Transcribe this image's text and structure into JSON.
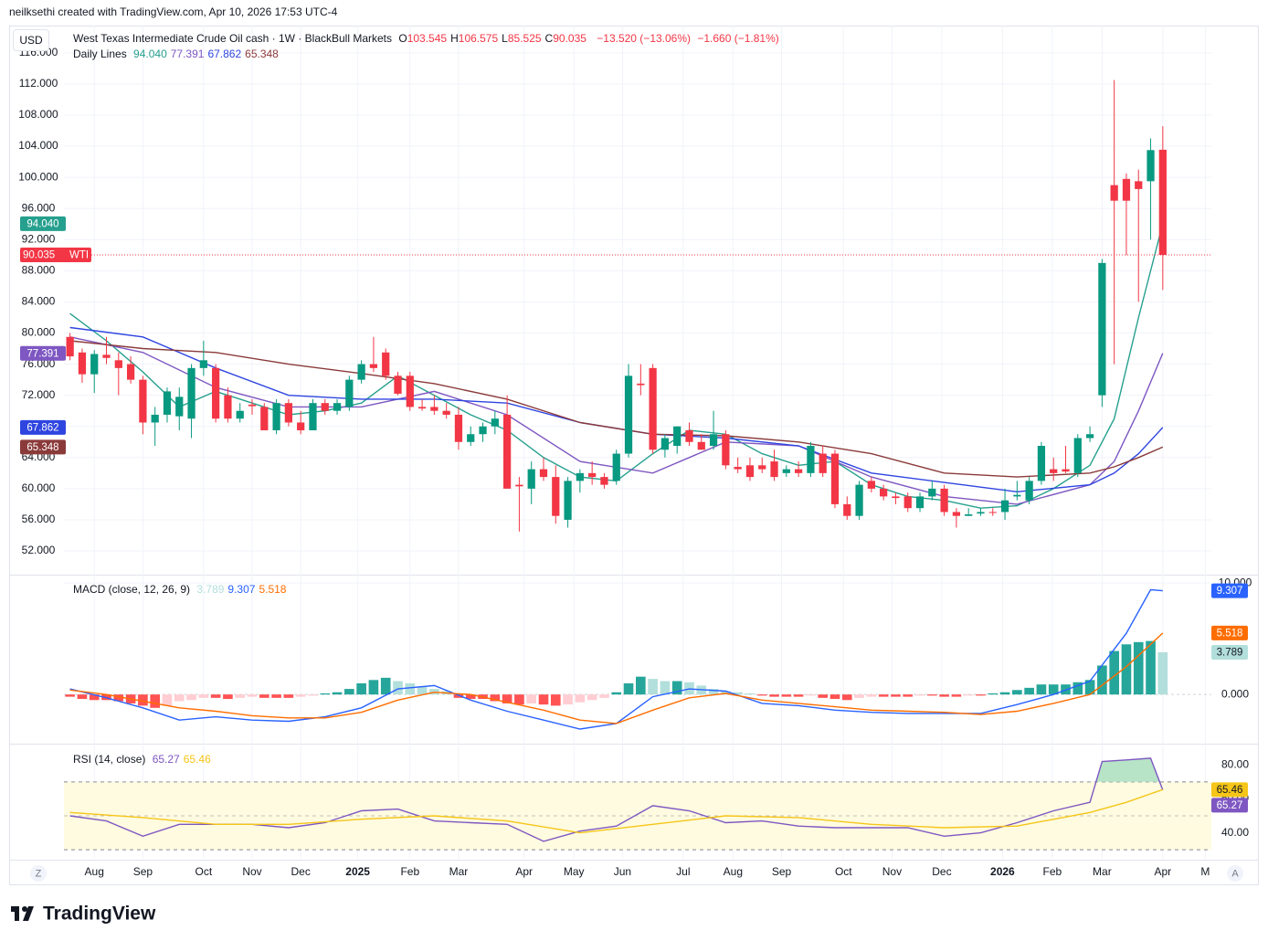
{
  "page": {
    "author_line": "neilksethi created with TradingView.com, Apr 10, 2026 17:53 UTC-4",
    "logo": "TradingView",
    "currency": "USD",
    "zoom_buttons": [
      "Z",
      "A"
    ]
  },
  "chart_data": [
    {
      "type": "candlestick",
      "title": "West Texas Intermediate Crude Oil cash · 1W · BlackBull Markets",
      "ohlc_prefixes": [
        "O",
        "H",
        "L",
        "C"
      ],
      "change": "−13.520 (−13.06%)",
      "change_2": "−1.660 (−1.81%)",
      "symbol_tag": "WTI",
      "up_color": "#089981",
      "down_color": "#f23645",
      "open": [
        79.5,
        77.5,
        74.7,
        77.2,
        76.5,
        76,
        74,
        68.5,
        69.5,
        69.3,
        69,
        75.5,
        75.5,
        72,
        69,
        70.8,
        70.5,
        67.5,
        71,
        68.5,
        67.5,
        71,
        70,
        70.5,
        74,
        76,
        77.5,
        74.5,
        74.5,
        70.5,
        70.5,
        70,
        69.5,
        66,
        67,
        68,
        69.5,
        60.5,
        60,
        62.5,
        61.5,
        56,
        61,
        62,
        61.5,
        61,
        64.5,
        73.5,
        75.5,
        65,
        65.5,
        67.5,
        66,
        65.5,
        67,
        62.8,
        63,
        63,
        63.5,
        62,
        62.5,
        62,
        64.5,
        64.5,
        58,
        56.5,
        61,
        60,
        59,
        59,
        57.5,
        59,
        60,
        57,
        56.5,
        56.8,
        57,
        57,
        59,
        58.5,
        61,
        62.5,
        62.5,
        62,
        66.5,
        72,
        99,
        99.8,
        99.5,
        99.5,
        103.545
      ],
      "high": [
        80,
        78,
        77.8,
        79.5,
        77.5,
        77,
        74.5,
        70.5,
        73,
        73,
        76,
        79,
        76,
        73,
        71,
        71.5,
        71,
        71.5,
        71.5,
        70,
        71.5,
        71.5,
        71.5,
        74.5,
        76.5,
        79.5,
        78,
        75,
        75,
        71.5,
        72,
        71,
        70.5,
        68,
        68.5,
        70,
        72,
        61.5,
        63.5,
        64,
        63,
        61.5,
        62.5,
        63.5,
        62,
        65,
        76,
        76,
        76,
        67,
        68,
        68.5,
        67,
        70,
        67.5,
        64,
        64,
        64,
        65,
        63,
        63.5,
        66,
        65.5,
        65,
        59,
        61,
        61.5,
        60.5,
        59.5,
        59.5,
        59.5,
        61,
        60.5,
        57.5,
        57.5,
        57.5,
        57.5,
        60,
        61,
        61.5,
        66,
        64,
        65.5,
        67,
        68,
        89.5,
        112.5,
        100.5,
        101,
        105,
        106.575
      ],
      "low": [
        76.5,
        73.6,
        72.3,
        76,
        72,
        73.5,
        67,
        65.5,
        68.5,
        67.5,
        66.5,
        74.5,
        68.5,
        68.5,
        68.5,
        69.5,
        67.5,
        67,
        68,
        67,
        67.5,
        69.5,
        69.5,
        70,
        73.5,
        75,
        74,
        72,
        70,
        70,
        69.5,
        69,
        65,
        65.5,
        66,
        67,
        60,
        54.5,
        58,
        61,
        55.5,
        55,
        59.5,
        60.5,
        60,
        60.5,
        64,
        72,
        64.5,
        64,
        64.5,
        65.5,
        65,
        65,
        62.5,
        62,
        61,
        62,
        61,
        61.5,
        61.5,
        61.5,
        61.5,
        57.5,
        56,
        56,
        59.5,
        58.5,
        58,
        57,
        57,
        58.5,
        56.5,
        55,
        56.5,
        56.5,
        56.5,
        56,
        58.5,
        58,
        60.5,
        61,
        62,
        61.5,
        66,
        70.5,
        76,
        90,
        84,
        92,
        85.525
      ],
      "close": [
        77,
        74.7,
        77.3,
        76.8,
        75.5,
        74,
        68.5,
        69.5,
        72.5,
        71.8,
        75.5,
        76.5,
        69,
        69,
        70,
        70.6,
        67.5,
        71,
        68.5,
        67.5,
        71,
        70,
        71,
        74,
        76,
        75.5,
        74.5,
        72.2,
        70.5,
        70.3,
        70,
        69.5,
        66,
        67,
        68,
        69,
        60,
        60.3,
        62.5,
        61.5,
        56.5,
        61,
        62,
        61.5,
        60.5,
        64.5,
        74.5,
        73.3,
        65,
        66.5,
        68,
        66,
        65,
        67,
        63,
        62.5,
        61.5,
        62.5,
        61.5,
        62.5,
        62,
        65.5,
        62,
        58,
        56.5,
        60.5,
        60,
        59,
        58.8,
        57.5,
        59,
        60,
        57,
        56.5,
        56.7,
        57,
        56.9,
        58.5,
        59.2,
        61,
        65.5,
        62,
        62.2,
        66.5,
        67,
        89,
        97,
        97,
        98.5,
        103.5,
        90.035
      ],
      "xlim": [
        -0.5,
        94
      ],
      "xticks": [
        {
          "value": 2,
          "label": "Aug"
        },
        {
          "value": 6,
          "label": "Sep"
        },
        {
          "value": 11,
          "label": "Oct"
        },
        {
          "value": 15,
          "label": "Nov"
        },
        {
          "value": 19,
          "label": "Dec"
        },
        {
          "value": 23.7,
          "label": "2025"
        },
        {
          "value": 28,
          "label": "Feb"
        },
        {
          "value": 32,
          "label": "Mar"
        },
        {
          "value": 37.4,
          "label": "Apr"
        },
        {
          "value": 41.5,
          "label": "May"
        },
        {
          "value": 45.5,
          "label": "Jun"
        },
        {
          "value": 50.5,
          "label": "Jul"
        },
        {
          "value": 54.6,
          "label": "Aug"
        },
        {
          "value": 58.6,
          "label": "Sep"
        },
        {
          "value": 63.7,
          "label": "Oct"
        },
        {
          "value": 67.7,
          "label": "Nov"
        },
        {
          "value": 71.8,
          "label": "Dec"
        },
        {
          "value": 76.8,
          "label": "2026"
        },
        {
          "value": 80.9,
          "label": "Feb"
        },
        {
          "value": 85,
          "label": "Mar"
        },
        {
          "value": 90,
          "label": "Apr"
        },
        {
          "value": 93.5,
          "label": "M"
        }
      ],
      "ylim": [
        49.07,
        119.5
      ],
      "yticks": [
        {
          "value": 52,
          "label": "52.000"
        },
        {
          "value": 56,
          "label": "56.000"
        },
        {
          "value": 60,
          "label": "60.000"
        },
        {
          "value": 64,
          "label": "64.000"
        },
        {
          "value": 68,
          "label": "68.000"
        },
        {
          "value": 72,
          "label": "72.000"
        },
        {
          "value": 76,
          "label": "76.000"
        },
        {
          "value": 80,
          "label": "80.000"
        },
        {
          "value": 84,
          "label": "84.000"
        },
        {
          "value": 88,
          "label": "88.000"
        },
        {
          "value": 92,
          "label": "92.000"
        },
        {
          "value": 96,
          "label": "96.000"
        },
        {
          "value": 100,
          "label": "100.000"
        },
        {
          "value": 104,
          "label": "104.000"
        },
        {
          "value": 108,
          "label": "108.000"
        },
        {
          "value": 112,
          "label": "112.000"
        },
        {
          "value": 116,
          "label": "116.000"
        }
      ],
      "grid": true,
      "lines_title": "Daily Lines",
      "lines": [
        {
          "color": "#26a08e",
          "last_label": "94.040",
          "x": [
            0,
            3,
            6,
            9,
            12,
            15,
            18,
            21,
            24,
            27,
            30,
            33,
            36,
            39,
            42,
            45,
            48,
            51,
            54,
            57,
            60,
            63,
            66,
            69,
            72,
            75,
            78,
            81,
            84,
            86,
            88,
            90
          ],
          "values": [
            82.5,
            79,
            75,
            70.5,
            72.5,
            71,
            69.5,
            70,
            71,
            74.5,
            72,
            69.5,
            67.5,
            64,
            61.5,
            61,
            64.5,
            67.5,
            67,
            64.5,
            63,
            63.5,
            60.5,
            59,
            58.5,
            57.5,
            57.8,
            60,
            63,
            69,
            82,
            94.04
          ]
        },
        {
          "color": "#7e57c2",
          "last_label": "77.391",
          "x": [
            0,
            6,
            12,
            18,
            24,
            30,
            36,
            42,
            48,
            54,
            60,
            66,
            72,
            78,
            84,
            86,
            88,
            90
          ],
          "values": [
            79.5,
            77.5,
            73,
            70.5,
            70.5,
            72.5,
            69.5,
            63.5,
            62,
            66,
            65.5,
            61.5,
            59,
            58,
            60.5,
            63.5,
            70,
            77.391
          ]
        },
        {
          "color": "#2f45e0",
          "last_label": "67.862",
          "x": [
            0,
            6,
            12,
            18,
            24,
            30,
            36,
            42,
            48,
            54,
            60,
            66,
            72,
            78,
            84,
            86,
            88,
            90
          ],
          "values": [
            80.7,
            79.5,
            75.5,
            72,
            71.5,
            71.5,
            71,
            68.5,
            67,
            66.5,
            65.5,
            62,
            60.8,
            59.6,
            60.5,
            62,
            64.5,
            67.862
          ]
        },
        {
          "color": "#8b3a3a",
          "last_label": "65.348",
          "x": [
            0,
            6,
            12,
            18,
            24,
            30,
            36,
            42,
            48,
            54,
            60,
            66,
            72,
            78,
            84,
            86,
            88,
            90
          ],
          "values": [
            79,
            78,
            77.5,
            76,
            74.8,
            73.5,
            71.5,
            68.5,
            67,
            66.8,
            66,
            64.5,
            62,
            61.5,
            62,
            62.8,
            64,
            65.348
          ]
        }
      ]
    },
    {
      "type": "macd",
      "title": "MACD (close, 12, 26, 9)",
      "xlim": [
        -0.5,
        94
      ],
      "ylim": [
        -4.33,
        10.67
      ],
      "yticks": [
        {
          "value": 0,
          "label": "0.000"
        },
        {
          "value": 10,
          "label": "10.000"
        }
      ],
      "histogram": [
        -0.2,
        -0.4,
        -0.5,
        -0.5,
        -0.6,
        -0.8,
        -1.0,
        -1.2,
        -1.0,
        -0.6,
        -0.5,
        -0.3,
        -0.3,
        -0.4,
        -0.3,
        -0.2,
        -0.3,
        -0.3,
        -0.3,
        -0.2,
        -0.1,
        0.1,
        0.2,
        0.5,
        1.0,
        1.3,
        1.5,
        1.2,
        1.0,
        0.7,
        0.5,
        0.3,
        -0.3,
        -0.4,
        -0.4,
        -0.6,
        -0.8,
        -0.9,
        -0.8,
        -0.9,
        -1.0,
        -0.9,
        -0.7,
        -0.5,
        -0.3,
        0.2,
        1.0,
        1.6,
        1.4,
        1.2,
        1.2,
        1.1,
        0.8,
        0.5,
        0.3,
        0.2,
        0.1,
        -0.1,
        -0.2,
        -0.2,
        -0.2,
        -0.1,
        -0.3,
        -0.4,
        -0.5,
        -0.3,
        -0.2,
        -0.2,
        -0.2,
        -0.2,
        -0.1,
        -0.1,
        -0.2,
        -0.2,
        -0.1,
        -0.1,
        0.1,
        0.2,
        0.4,
        0.6,
        0.9,
        0.9,
        0.9,
        1.1,
        1.3,
        2.6,
        3.9,
        4.5,
        4.7,
        4.8,
        3.789
      ],
      "histogram_colors": [
        "#26a69a",
        "#b2dfdb",
        "#ff5252",
        "#ffcdd2"
      ],
      "lines": [
        {
          "color": "#2962ff",
          "x": [
            0,
            3,
            6,
            9,
            12,
            15,
            18,
            21,
            24,
            27,
            30,
            33,
            36,
            39,
            42,
            45,
            48,
            51,
            54,
            57,
            60,
            63,
            66,
            69,
            72,
            75,
            78,
            81,
            84,
            87,
            89,
            90
          ],
          "values": [
            0.5,
            -0.3,
            -1.2,
            -2.3,
            -2.0,
            -2.3,
            -2.4,
            -2.0,
            -1.2,
            0.5,
            0.8,
            -0.5,
            -1.5,
            -2.3,
            -3.1,
            -2.6,
            -0.2,
            0.5,
            0.3,
            -0.8,
            -1.0,
            -1.4,
            -1.6,
            -1.7,
            -1.7,
            -1.7,
            -0.9,
            0.0,
            1.2,
            5.5,
            9.4,
            9.307
          ]
        },
        {
          "color": "#ff6d00",
          "x": [
            0,
            3,
            6,
            9,
            12,
            15,
            18,
            21,
            24,
            27,
            30,
            33,
            36,
            39,
            42,
            45,
            48,
            51,
            54,
            57,
            60,
            63,
            66,
            69,
            72,
            75,
            78,
            81,
            84,
            87,
            89,
            90
          ],
          "values": [
            0.4,
            0.0,
            -0.6,
            -1.2,
            -1.5,
            -1.9,
            -2.1,
            -2.1,
            -1.6,
            -0.5,
            0.2,
            0.0,
            -0.7,
            -1.4,
            -2.3,
            -2.6,
            -1.4,
            -0.3,
            0.1,
            -0.5,
            -0.8,
            -1.1,
            -1.4,
            -1.5,
            -1.6,
            -1.8,
            -1.5,
            -0.8,
            0.0,
            2.5,
            4.5,
            5.518
          ]
        }
      ]
    },
    {
      "type": "rsi",
      "title": "RSI (14, close)",
      "xlim": [
        -0.5,
        94
      ],
      "ylim": [
        24.7,
        91.5
      ],
      "yticks": [
        {
          "value": 40,
          "label": "40.00"
        },
        {
          "value": 60,
          "label": "60.00"
        },
        {
          "value": 80,
          "label": "80.00"
        }
      ],
      "levels": [
        70,
        50,
        30
      ],
      "band_color": "#fffbe0",
      "overbought_color": "#b7e4c7",
      "lines": [
        {
          "color": "#7e57c2",
          "x": [
            0,
            3,
            6,
            9,
            12,
            15,
            18,
            21,
            24,
            27,
            30,
            33,
            36,
            39,
            42,
            45,
            48,
            51,
            54,
            57,
            60,
            63,
            66,
            69,
            72,
            75,
            78,
            81,
            84,
            85,
            87,
            89,
            90
          ],
          "values": [
            50,
            47,
            38,
            45,
            45,
            45,
            43,
            46,
            53,
            54,
            47,
            46,
            45,
            35,
            41,
            44,
            56,
            53,
            46,
            47,
            44,
            43,
            43,
            43,
            38,
            40,
            46,
            53,
            58,
            82,
            83,
            84,
            65.27
          ]
        },
        {
          "color": "#f5c518",
          "x": [
            0,
            6,
            12,
            18,
            24,
            30,
            36,
            42,
            48,
            54,
            60,
            66,
            72,
            78,
            84,
            87,
            90
          ],
          "values": [
            52,
            49,
            45,
            45,
            48,
            50,
            47,
            40,
            45,
            50,
            49,
            45,
            43,
            44,
            52,
            58,
            65.46
          ]
        }
      ]
    }
  ]
}
